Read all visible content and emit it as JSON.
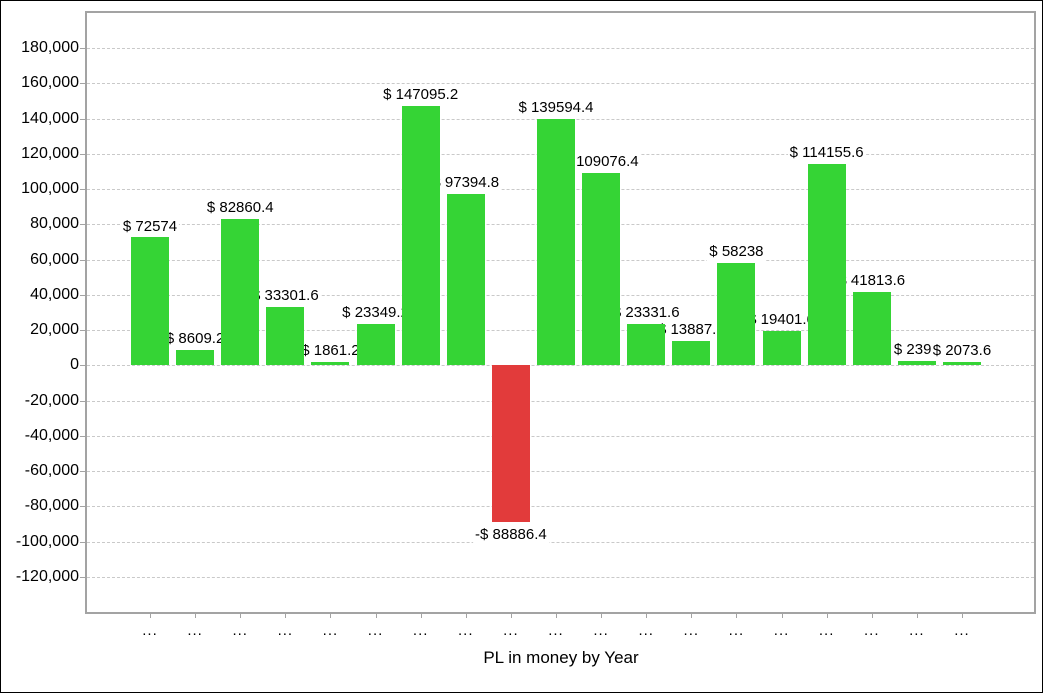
{
  "chart_data": {
    "type": "bar",
    "title": "",
    "xlabel": "PL in money by Year",
    "ylabel": "",
    "legend": "none",
    "grid": "horizontal-dashed",
    "ylim": [
      -140000,
      200000
    ],
    "ytick_step": 20000,
    "yticks": [
      {
        "v": 180000,
        "label": "180,000"
      },
      {
        "v": 160000,
        "label": "160,000"
      },
      {
        "v": 140000,
        "label": "140,000"
      },
      {
        "v": 120000,
        "label": "120,000"
      },
      {
        "v": 100000,
        "label": "100,000"
      },
      {
        "v": 80000,
        "label": "80,000"
      },
      {
        "v": 60000,
        "label": "60,000"
      },
      {
        "v": 40000,
        "label": "40,000"
      },
      {
        "v": 20000,
        "label": "20,000"
      },
      {
        "v": 0,
        "label": "0"
      },
      {
        "v": -20000,
        "label": "-20,000"
      },
      {
        "v": -40000,
        "label": "-40,000"
      },
      {
        "v": -60000,
        "label": "-60,000"
      },
      {
        "v": -80000,
        "label": "-80,000"
      },
      {
        "v": -100000,
        "label": "-100,000"
      },
      {
        "v": -120000,
        "label": "-120,000"
      }
    ],
    "categories": [
      "...",
      "...",
      "...",
      "...",
      "...",
      "...",
      "...",
      "...",
      "...",
      "...",
      "...",
      "...",
      "...",
      "...",
      "...",
      "...",
      "...",
      "...",
      "..."
    ],
    "values": [
      72574,
      8609.2,
      82860.4,
      33301.6,
      1861.2,
      23349.2,
      147095.2,
      97394.8,
      -88886.4,
      139594.4,
      109076.4,
      23331.6,
      13887.2,
      58238,
      19401.6,
      114155.6,
      41813.6,
      2392,
      2073.6
    ],
    "bar_labels": [
      "$ 72574",
      "$ 8609.2",
      "$ 82860.4",
      "$ 33301.6",
      "$ 1861.2",
      "$ 23349.2",
      "$ 147095.2",
      "$ 97394.8",
      "-$ 88886.4",
      "$ 139594.4",
      "$ 109076.4",
      "$ 23331.6",
      "$ 13887.2",
      "$ 58238",
      "$ 19401.6",
      "$ 114155.6",
      "$ 41813.6",
      "$ 2392",
      "$ 2073.6"
    ],
    "colors": {
      "positive_bar": "#35d435",
      "negative_bar": "#e23b3b",
      "gridline": "#c9c9c9",
      "axis_border": "#a3a3a3",
      "text": "#000000"
    }
  }
}
